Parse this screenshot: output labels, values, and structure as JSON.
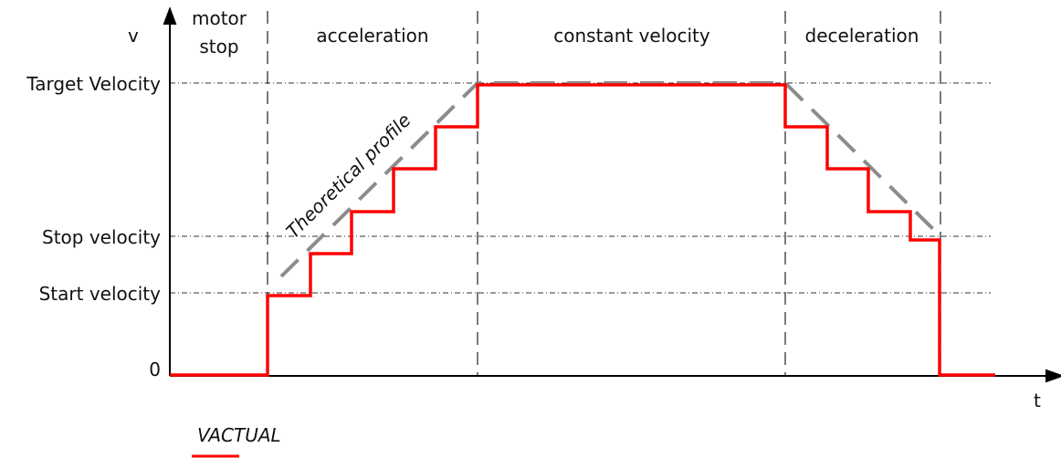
{
  "axes": {
    "y_name": "v",
    "x_name": "t"
  },
  "y_levels": {
    "target": "Target Velocity",
    "stop": "Stop velocity",
    "start": "Start velocity",
    "zero": "0"
  },
  "phases": {
    "motor_stop_line1": "motor",
    "motor_stop_line2": "stop",
    "acceleration": "acceleration",
    "constant": "constant velocity",
    "deceleration": "deceleration"
  },
  "theoretical_label": "Theoretical profile",
  "legend": {
    "label": "VACTUAL",
    "color": "#ff0000"
  },
  "colors": {
    "actual": "#ff0000",
    "theoretical": "#8c8c8c",
    "axis": "#000000"
  }
}
